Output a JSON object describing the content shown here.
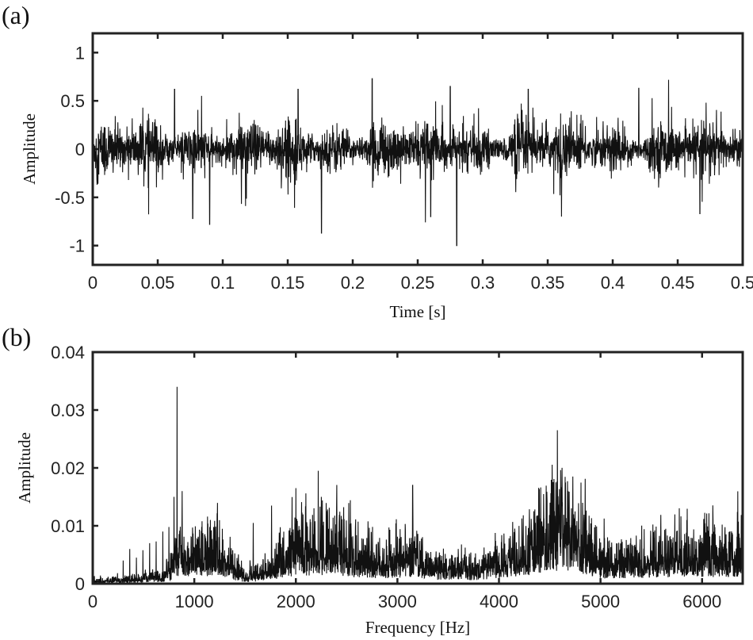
{
  "chart_data": [
    {
      "panel_label": "(a)",
      "type": "line",
      "title": "",
      "xlabel": "Time [s]",
      "ylabel": "Amplitude",
      "xlim": [
        0,
        0.5
      ],
      "ylim": [
        -1.2,
        1.2
      ],
      "xticks": [
        0,
        0.05,
        0.1,
        0.15,
        0.2,
        0.25,
        0.3,
        0.35,
        0.4,
        0.45,
        0.5
      ],
      "xtick_labels": [
        "0",
        "0.05",
        "0.1",
        "0.15",
        "0.2",
        "0.25",
        "0.3",
        "0.35",
        "0.4",
        "0.45",
        "0.5"
      ],
      "yticks": [
        1,
        0.5,
        0,
        -0.5,
        -1
      ],
      "ytick_labels": [
        "1",
        "0.5",
        "0",
        "-0.5",
        "-1"
      ],
      "grid": false,
      "color": "#111111",
      "description_values": {
        "noise_std": 0.12,
        "peaks": [
          {
            "x": 0.077,
            "y": -0.72
          },
          {
            "x": 0.09,
            "y": -0.78
          },
          {
            "x": 0.063,
            "y": 0.62
          },
          {
            "x": 0.158,
            "y": 0.62
          },
          {
            "x": 0.176,
            "y": -0.87
          },
          {
            "x": 0.215,
            "y": 0.73
          },
          {
            "x": 0.26,
            "y": -0.7
          },
          {
            "x": 0.275,
            "y": 0.65
          },
          {
            "x": 0.28,
            "y": -1.0
          },
          {
            "x": 0.335,
            "y": 0.62
          },
          {
            "x": 0.42,
            "y": 0.63
          },
          {
            "x": 0.467,
            "y": -0.67
          }
        ]
      }
    },
    {
      "panel_label": "(b)",
      "type": "line",
      "title": "",
      "xlabel": "Frequency [Hz]",
      "ylabel": "Amplitude",
      "xlim": [
        0,
        6400
      ],
      "ylim": [
        0,
        0.04
      ],
      "xticks": [
        0,
        1000,
        2000,
        3000,
        4000,
        5000,
        6000
      ],
      "xtick_labels": [
        "0",
        "1000",
        "2000",
        "3000",
        "4000",
        "5000",
        "6000"
      ],
      "yticks": [
        0,
        0.01,
        0.02,
        0.03,
        0.04
      ],
      "ytick_labels": [
        "0",
        "0.01",
        "0.02",
        "0.03",
        "0.04"
      ],
      "grid": false,
      "color": "#111111",
      "envelope": [
        [
          0,
          0.0003
        ],
        [
          300,
          0.0005
        ],
        [
          700,
          0.001
        ],
        [
          850,
          0.0035
        ],
        [
          1200,
          0.0045
        ],
        [
          1400,
          0.002
        ],
        [
          1500,
          0.0008
        ],
        [
          1650,
          0.0015
        ],
        [
          2000,
          0.0045
        ],
        [
          2400,
          0.005
        ],
        [
          2600,
          0.0035
        ],
        [
          2900,
          0.003
        ],
        [
          3150,
          0.004
        ],
        [
          3350,
          0.002
        ],
        [
          3800,
          0.002
        ],
        [
          4200,
          0.004
        ],
        [
          4600,
          0.0075
        ],
        [
          4800,
          0.006
        ],
        [
          5000,
          0.003
        ],
        [
          5400,
          0.003
        ],
        [
          5800,
          0.004
        ],
        [
          6400,
          0.0035
        ]
      ],
      "peaks": [
        {
          "x": 300,
          "y": 0.004
        },
        {
          "x": 365,
          "y": 0.006
        },
        {
          "x": 430,
          "y": 0.0045
        },
        {
          "x": 495,
          "y": 0.0058
        },
        {
          "x": 560,
          "y": 0.007
        },
        {
          "x": 625,
          "y": 0.0073
        },
        {
          "x": 690,
          "y": 0.009
        },
        {
          "x": 750,
          "y": 0.0098
        },
        {
          "x": 800,
          "y": 0.015
        },
        {
          "x": 830,
          "y": 0.034
        },
        {
          "x": 880,
          "y": 0.016
        },
        {
          "x": 1190,
          "y": 0.0098
        },
        {
          "x": 1580,
          "y": 0.0105
        },
        {
          "x": 1760,
          "y": 0.0135
        },
        {
          "x": 2000,
          "y": 0.0165
        },
        {
          "x": 2220,
          "y": 0.0195
        },
        {
          "x": 2250,
          "y": 0.015
        },
        {
          "x": 2400,
          "y": 0.013
        },
        {
          "x": 3150,
          "y": 0.017
        },
        {
          "x": 4560,
          "y": 0.0175
        },
        {
          "x": 4620,
          "y": 0.018
        },
        {
          "x": 5850,
          "y": 0.011
        }
      ]
    }
  ]
}
